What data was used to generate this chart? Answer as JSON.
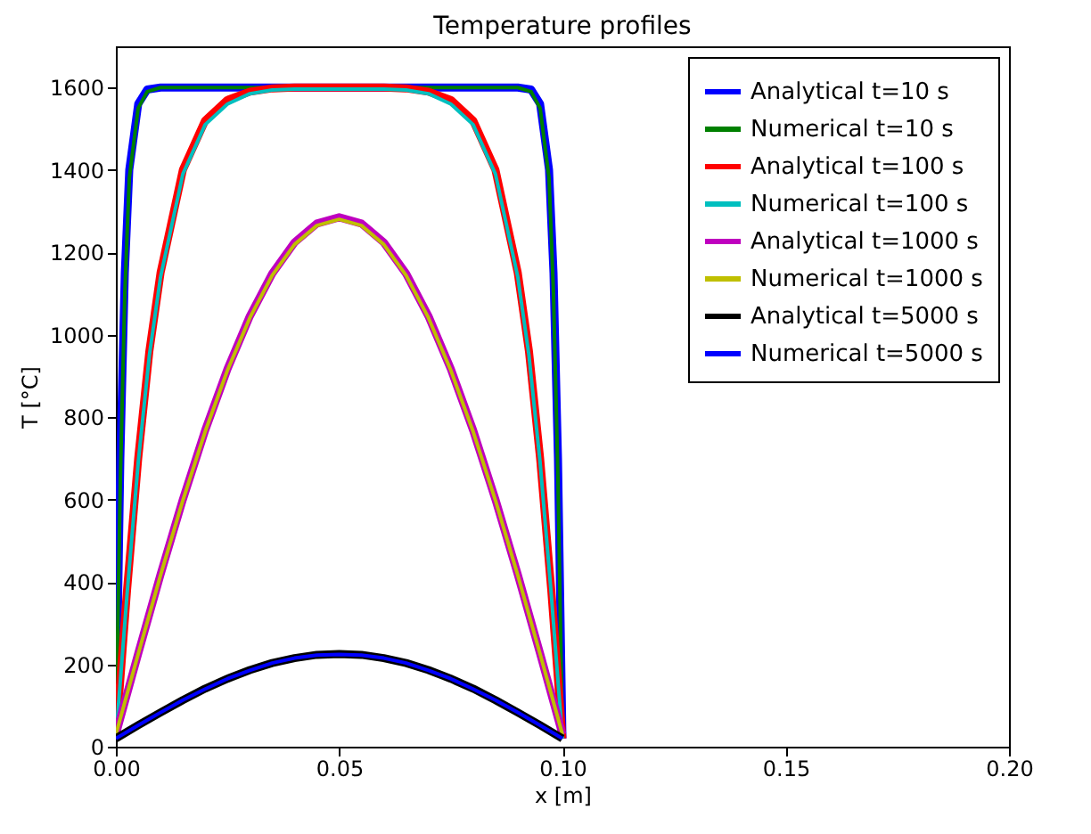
{
  "chart_data": {
    "type": "line",
    "title": "Temperature profiles",
    "xlabel": "x [m]",
    "ylabel": "T [°C]",
    "xlim": [
      0,
      0.2
    ],
    "ylim": [
      0,
      1700
    ],
    "xticks": [
      {
        "value": 0,
        "label": "0.00"
      },
      {
        "value": 0.05,
        "label": "0.05"
      },
      {
        "value": 0.1,
        "label": "0.10"
      },
      {
        "value": 0.15,
        "label": "0.15"
      },
      {
        "value": 0.2,
        "label": "0.20"
      }
    ],
    "yticks": [
      0,
      200,
      400,
      600,
      800,
      1000,
      1200,
      1400,
      1600
    ],
    "grid": false,
    "legend": "top right",
    "marker": "none",
    "line_style": "solid",
    "series": [
      {
        "name": "Analytical t=10 s",
        "color": "#0000ff",
        "x": [
          0,
          0.001,
          0.002,
          0.003,
          0.005,
          0.007,
          0.01,
          0.02,
          0.08,
          0.09,
          0.093,
          0.095,
          0.097,
          0.098,
          0.099,
          0.1
        ],
        "values": [
          20,
          700,
          1150,
          1400,
          1560,
          1595,
          1600,
          1600,
          1600,
          1600,
          1595,
          1560,
          1400,
          1150,
          700,
          20
        ]
      },
      {
        "name": "Numerical t=10 s",
        "color": "#008000",
        "x": [
          0,
          0.001,
          0.002,
          0.003,
          0.005,
          0.007,
          0.01,
          0.02,
          0.08,
          0.09,
          0.093,
          0.095,
          0.097,
          0.098,
          0.099,
          0.1
        ],
        "values": [
          20,
          650,
          1100,
          1380,
          1550,
          1590,
          1600,
          1600,
          1600,
          1600,
          1590,
          1550,
          1380,
          1100,
          650,
          20
        ]
      },
      {
        "name": "Analytical t=100 s",
        "color": "#ff0000",
        "x": [
          0,
          0.0025,
          0.005,
          0.0075,
          0.01,
          0.015,
          0.02,
          0.025,
          0.03,
          0.035,
          0.04,
          0.05,
          0.06,
          0.065,
          0.07,
          0.075,
          0.08,
          0.085,
          0.09,
          0.0925,
          0.095,
          0.0975,
          0.1
        ],
        "values": [
          20,
          380,
          700,
          960,
          1150,
          1400,
          1520,
          1570,
          1590,
          1598,
          1600,
          1600,
          1600,
          1598,
          1590,
          1570,
          1520,
          1400,
          1150,
          960,
          700,
          380,
          20
        ]
      },
      {
        "name": "Numerical t=100 s",
        "color": "#00bfbf",
        "x": [
          0,
          0.0025,
          0.005,
          0.0075,
          0.01,
          0.015,
          0.02,
          0.025,
          0.03,
          0.035,
          0.04,
          0.05,
          0.06,
          0.065,
          0.07,
          0.075,
          0.08,
          0.085,
          0.09,
          0.0925,
          0.095,
          0.0975,
          0.1
        ],
        "values": [
          20,
          370,
          690,
          950,
          1140,
          1390,
          1510,
          1560,
          1585,
          1594,
          1596,
          1596,
          1596,
          1594,
          1585,
          1560,
          1510,
          1390,
          1140,
          950,
          690,
          370,
          20
        ]
      },
      {
        "name": "Analytical t=1000 s",
        "color": "#bf00bf",
        "x": [
          0,
          0.005,
          0.01,
          0.015,
          0.02,
          0.025,
          0.03,
          0.035,
          0.04,
          0.045,
          0.05,
          0.055,
          0.06,
          0.065,
          0.07,
          0.075,
          0.08,
          0.085,
          0.09,
          0.095,
          0.1
        ],
        "values": [
          30,
          226,
          418,
          600,
          768,
          917,
          1045,
          1148,
          1224,
          1270,
          1285,
          1270,
          1224,
          1148,
          1045,
          917,
          768,
          600,
          418,
          226,
          30
        ]
      },
      {
        "name": "Numerical t=1000 s",
        "color": "#bfbf00",
        "x": [
          0,
          0.005,
          0.01,
          0.015,
          0.02,
          0.025,
          0.03,
          0.035,
          0.04,
          0.045,
          0.05,
          0.055,
          0.06,
          0.065,
          0.07,
          0.075,
          0.08,
          0.085,
          0.09,
          0.095,
          0.1
        ],
        "values": [
          30,
          225,
          416,
          598,
          765,
          914,
          1041,
          1144,
          1219,
          1265,
          1280,
          1265,
          1219,
          1144,
          1041,
          914,
          765,
          598,
          416,
          225,
          30
        ]
      },
      {
        "name": "Analytical t=5000 s",
        "color": "#000000",
        "x": [
          0,
          0.005,
          0.01,
          0.015,
          0.02,
          0.025,
          0.03,
          0.035,
          0.04,
          0.045,
          0.05,
          0.055,
          0.06,
          0.065,
          0.07,
          0.075,
          0.08,
          0.085,
          0.09,
          0.095,
          0.1
        ],
        "values": [
          20,
          52,
          83,
          113,
          141,
          165,
          186,
          203,
          215,
          223,
          225,
          223,
          215,
          203,
          186,
          165,
          141,
          113,
          83,
          52,
          20
        ]
      },
      {
        "name": "Numerical t=5000 s",
        "color": "#0000ff",
        "x": [
          0,
          0.005,
          0.01,
          0.015,
          0.02,
          0.025,
          0.03,
          0.035,
          0.04,
          0.045,
          0.05,
          0.055,
          0.06,
          0.065,
          0.07,
          0.075,
          0.08,
          0.085,
          0.09,
          0.095,
          0.1
        ],
        "values": [
          20,
          52,
          83,
          113,
          140,
          165,
          185,
          203,
          215,
          222,
          224,
          222,
          215,
          203,
          185,
          165,
          140,
          113,
          83,
          52,
          20
        ]
      }
    ]
  }
}
